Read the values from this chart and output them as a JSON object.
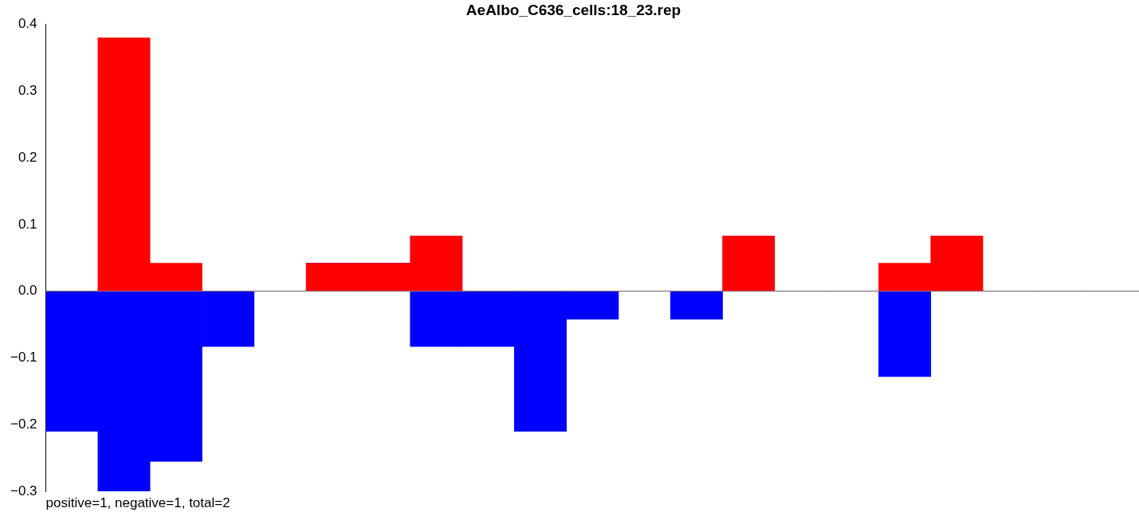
{
  "chart_data": {
    "type": "bar",
    "title": "AeAlbo_C636_cells:18_23.rep",
    "stacked": true,
    "categories": [
      null,
      null,
      null,
      null,
      null,
      null,
      null,
      null,
      null,
      null,
      null,
      null,
      null,
      null,
      null,
      null,
      null,
      null,
      null,
      null,
      null
    ],
    "series": [
      {
        "color": "#ff0000",
        "values": [
          0,
          0.38,
          0.042,
          0,
          0,
          0.042,
          0.042,
          0.083,
          0,
          0,
          0,
          0,
          0,
          0.083,
          0,
          0,
          0.042,
          0.083,
          0,
          0,
          0
        ]
      },
      {
        "color": "#0000ff",
        "values": [
          -0.21,
          -0.3,
          -0.255,
          -0.083,
          0,
          0,
          0,
          -0.083,
          -0.083,
          -0.21,
          -0.042,
          0,
          -0.042,
          0,
          0,
          0,
          -0.128,
          0,
          0,
          0,
          0
        ]
      }
    ],
    "ylim": [
      -0.3,
      0.4
    ],
    "yticks": [
      {
        "value": -0.3,
        "label": "−0.3"
      },
      {
        "value": -0.2,
        "label": "−0.2"
      },
      {
        "value": -0.1,
        "label": "−0.1"
      },
      {
        "value": 0,
        "label": "0.0"
      },
      0.1,
      0.2,
      0.3,
      0.4
    ],
    "tick_labels": "y",
    "grid": false,
    "ref_lines": [
      {
        "axis": "y",
        "value": 0,
        "color": "#808080"
      }
    ],
    "annotations": [
      "positive=1, negative=1, total=2"
    ]
  }
}
